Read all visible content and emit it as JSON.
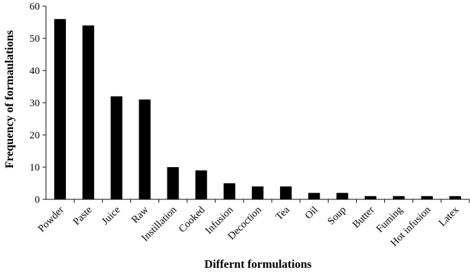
{
  "chart_data": {
    "type": "bar",
    "title": "",
    "xlabel": "Differnt formulations",
    "ylabel": "Frequency of formaulations",
    "ylim": [
      0,
      60
    ],
    "yticks": [
      0,
      10,
      20,
      30,
      40,
      50,
      60
    ],
    "grid": false,
    "legend": "none",
    "bar_color": "#000000",
    "categories": [
      "Powder",
      "Paste",
      "Juice",
      "Raw",
      "Instillation",
      "Cooked",
      "Infusion",
      "Decoction",
      "Tea",
      "Oil",
      "Soup",
      "Butter",
      "Fuming",
      "Hot infusion",
      "Latex"
    ],
    "values": [
      56,
      54,
      32,
      31,
      10,
      9,
      5,
      4,
      4,
      2,
      2,
      1,
      1,
      1,
      1
    ]
  }
}
